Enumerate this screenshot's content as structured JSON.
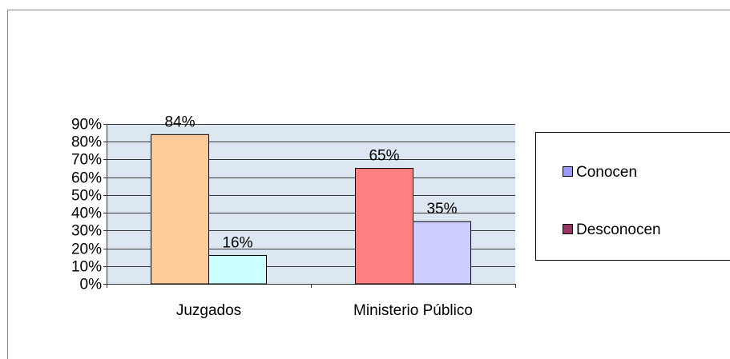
{
  "chart_data": {
    "type": "bar",
    "categories": [
      "Juzgados",
      "Ministerio Público"
    ],
    "series": [
      {
        "name": "Conocen",
        "color": "#9999ff",
        "bar_colors": [
          "#ffcc99",
          "#ff8080"
        ],
        "values": [
          84,
          65
        ],
        "value_labels": [
          "84%",
          "65%"
        ]
      },
      {
        "name": "Desconocen",
        "color": "#993366",
        "bar_colors": [
          "#ccffff",
          "#ccccff"
        ],
        "values": [
          16,
          35
        ],
        "value_labels": [
          "16%",
          "35%"
        ]
      }
    ],
    "ylim": [
      0,
      90
    ],
    "yticks": [
      {
        "value": 0,
        "label": "0%"
      },
      {
        "value": 10,
        "label": "10%"
      },
      {
        "value": 20,
        "label": "20%"
      },
      {
        "value": 30,
        "label": "30%"
      },
      {
        "value": 40,
        "label": "40%"
      },
      {
        "value": 50,
        "label": "50%"
      },
      {
        "value": 60,
        "label": "60%"
      },
      {
        "value": 70,
        "label": "70%"
      },
      {
        "value": 80,
        "label": "80%"
      },
      {
        "value": 90,
        "label": "90%"
      }
    ],
    "grid": true,
    "legend": "right"
  }
}
